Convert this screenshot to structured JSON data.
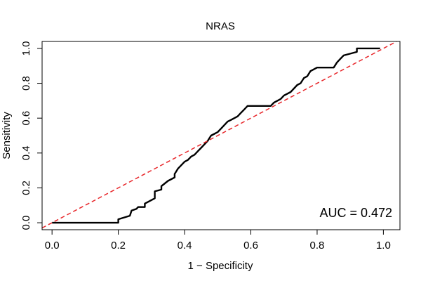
{
  "chart_data": {
    "type": "line",
    "title": "NRAS",
    "xlabel": "1 − Specificity",
    "ylabel": "Sensitivity",
    "xlim": [
      -0.03,
      1.05
    ],
    "ylim": [
      -0.04,
      1.04
    ],
    "x_ticks": [
      0.0,
      0.2,
      0.4,
      0.6,
      0.8,
      1.0
    ],
    "y_ticks": [
      0.0,
      0.2,
      0.4,
      0.6,
      0.8,
      1.0
    ],
    "x_tick_labels": [
      "0.0",
      "0.2",
      "0.4",
      "0.6",
      "0.8",
      "1.0"
    ],
    "y_tick_labels": [
      "0.0",
      "0.2",
      "0.4",
      "0.6",
      "0.8",
      "1.0"
    ],
    "grid": false,
    "annotation": "AUC = 0.472",
    "colors": {
      "roc": "#000000",
      "reference": "#e8262a"
    },
    "series": [
      {
        "style": "solid",
        "x": [
          0.0,
          0.2,
          0.2,
          0.235,
          0.24,
          0.255,
          0.26,
          0.28,
          0.28,
          0.31,
          0.31,
          0.33,
          0.33,
          0.35,
          0.36,
          0.37,
          0.37,
          0.38,
          0.39,
          0.4,
          0.41,
          0.42,
          0.43,
          0.44,
          0.45,
          0.46,
          0.47,
          0.48,
          0.49,
          0.5,
          0.51,
          0.52,
          0.53,
          0.54,
          0.55,
          0.56,
          0.57,
          0.58,
          0.59,
          0.6,
          0.66,
          0.67,
          0.69,
          0.7,
          0.72,
          0.73,
          0.74,
          0.75,
          0.76,
          0.77,
          0.78,
          0.79,
          0.8,
          0.85,
          0.86,
          0.87,
          0.88,
          0.9,
          0.92,
          0.92,
          0.99
        ],
        "y": [
          0.0,
          0.0,
          0.02,
          0.04,
          0.07,
          0.08,
          0.09,
          0.09,
          0.11,
          0.14,
          0.18,
          0.19,
          0.21,
          0.24,
          0.25,
          0.26,
          0.28,
          0.31,
          0.33,
          0.35,
          0.36,
          0.38,
          0.39,
          0.41,
          0.43,
          0.45,
          0.47,
          0.5,
          0.51,
          0.52,
          0.54,
          0.56,
          0.58,
          0.59,
          0.6,
          0.61,
          0.63,
          0.65,
          0.67,
          0.67,
          0.67,
          0.69,
          0.71,
          0.73,
          0.75,
          0.77,
          0.79,
          0.8,
          0.83,
          0.84,
          0.87,
          0.88,
          0.89,
          0.89,
          0.92,
          0.94,
          0.96,
          0.97,
          0.98,
          1.0,
          1.0
        ]
      },
      {
        "style": "dashed",
        "x": [
          -0.03,
          1.04
        ],
        "y": [
          -0.03,
          1.04
        ]
      }
    ]
  }
}
